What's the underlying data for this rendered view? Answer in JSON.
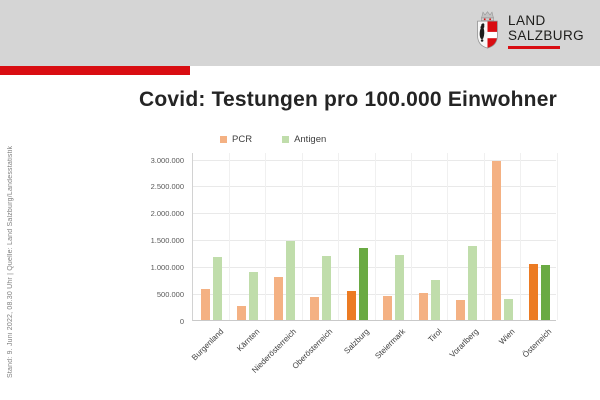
{
  "header": {
    "logo": {
      "line1": "LAND",
      "line2": "SALZBURG"
    }
  },
  "footer_note": "Stand: 9. Juni 2022, 08.30 Uhr | Quelle: Land Salzburg/Landesstatistik",
  "colors": {
    "accent_red": "#d90d12",
    "header_gray": "#d5d5d5"
  },
  "chart_data": {
    "type": "bar",
    "title": "Covid: Testungen pro 100.000 Einwohner",
    "categories": [
      "Burgenland",
      "Kärnten",
      "Niederösterreich",
      "Oberösterreich",
      "Salzburg",
      "Steiermark",
      "Tirol",
      "Vorarlberg",
      "Wien",
      "Österreich"
    ],
    "series": [
      {
        "name": "PCR",
        "color": "#f4b183",
        "highlight_color": "#ec7b23",
        "values": [
          580000,
          270000,
          810000,
          420000,
          540000,
          450000,
          500000,
          370000,
          2960000,
          1050000
        ]
      },
      {
        "name": "Antigen",
        "color": "#c0ddab",
        "highlight_color": "#6aaa43",
        "values": [
          1180000,
          890000,
          1470000,
          1200000,
          1340000,
          1220000,
          750000,
          1380000,
          390000,
          1030000
        ]
      }
    ],
    "highlighted_categories": [
      "Salzburg",
      "Österreich"
    ],
    "ylim": [
      0,
      3000000
    ],
    "ytick_step": 500000,
    "ytick_labels": [
      "0",
      "500.000",
      "1.000.000",
      "1.500.000",
      "2.000.000",
      "2.500.000",
      "3.000.000"
    ],
    "grid": true,
    "legend_position": "top",
    "xlabel": "",
    "ylabel": ""
  }
}
